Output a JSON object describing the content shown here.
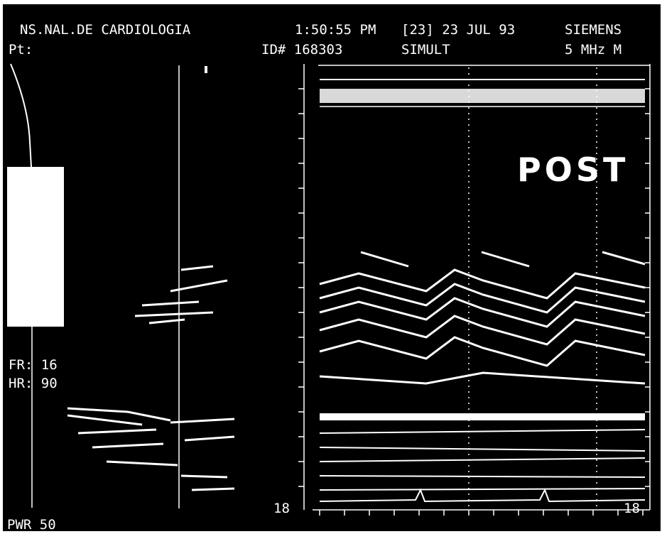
{
  "header": {
    "institution": "NS.NAL.DE CARDIOLOGIA",
    "patient": "Pt:",
    "time": "1:50:55 PM",
    "date": "[23] 23 JUL 93",
    "brand": "SIEMENS",
    "id": "ID# 168303",
    "mode": "SIMULT",
    "probe": "5 MHz M"
  },
  "overlay": {
    "label": "POST"
  },
  "left_panel": {
    "frame_rate": "FR: 16",
    "heart_rate": "HR: 90",
    "power": "PWR 50"
  },
  "mmode_panel": {
    "depth_left": "18",
    "depth_right": "18"
  }
}
